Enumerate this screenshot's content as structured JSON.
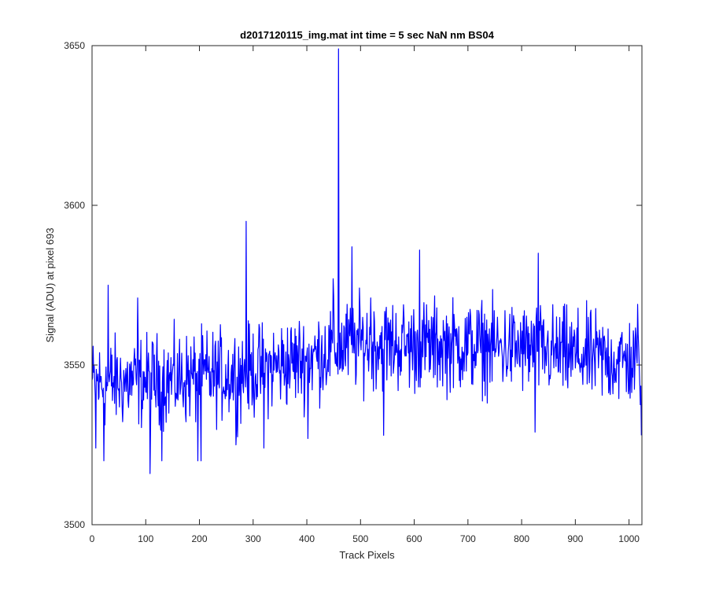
{
  "chart_data": {
    "type": "line",
    "title": "d2017120115_img.mat int time = 5 sec  NaN nm BS04",
    "xlabel": "Track Pixels",
    "ylabel": "Signal (ADU) at pixel 693",
    "xlim": [
      0,
      1024
    ],
    "ylim": [
      3500,
      3650
    ],
    "xticks": [
      0,
      100,
      200,
      300,
      400,
      500,
      600,
      700,
      800,
      900,
      1000
    ],
    "yticks": [
      3500,
      3550,
      3600,
      3650
    ],
    "grid": false,
    "legend": "none",
    "series": [
      {
        "color": "#0000ff",
        "n_points": 1024,
        "baseline_profile": {
          "x": [
            0,
            100,
            200,
            300,
            400,
            450,
            500,
            600,
            700,
            800,
            900,
            1000,
            1023
          ],
          "y": [
            3544,
            3545,
            3546,
            3548,
            3552,
            3555,
            3557,
            3556,
            3556,
            3555,
            3553,
            3551,
            3550
          ]
        },
        "noise_amplitude": 7,
        "features": [
          {
            "x": 1,
            "y": 3546
          },
          {
            "x": 7,
            "y": 3524
          },
          {
            "x": 22,
            "y": 3520
          },
          {
            "x": 30,
            "y": 3575
          },
          {
            "x": 85,
            "y": 3571
          },
          {
            "x": 108,
            "y": 3516
          },
          {
            "x": 130,
            "y": 3520
          },
          {
            "x": 197,
            "y": 3520
          },
          {
            "x": 203,
            "y": 3520
          },
          {
            "x": 268,
            "y": 3525
          },
          {
            "x": 287,
            "y": 3595
          },
          {
            "x": 320,
            "y": 3524
          },
          {
            "x": 402,
            "y": 3527
          },
          {
            "x": 449,
            "y": 3577
          },
          {
            "x": 459,
            "y": 3649
          },
          {
            "x": 484,
            "y": 3587
          },
          {
            "x": 519,
            "y": 3571
          },
          {
            "x": 543,
            "y": 3528
          },
          {
            "x": 610,
            "y": 3586
          },
          {
            "x": 825,
            "y": 3529
          },
          {
            "x": 831,
            "y": 3585
          },
          {
            "x": 1016,
            "y": 3569
          },
          {
            "x": 1023,
            "y": 3528
          }
        ]
      }
    ]
  }
}
